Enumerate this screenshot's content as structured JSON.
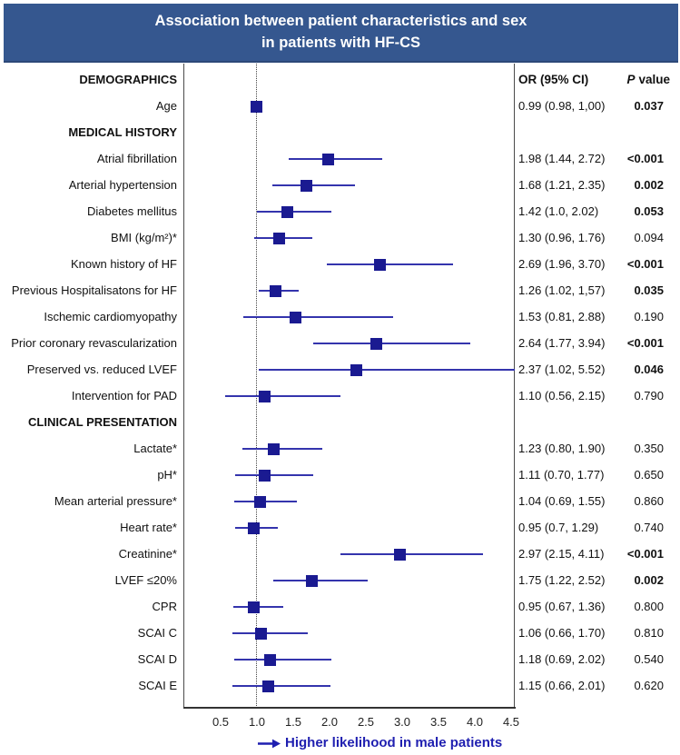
{
  "title": {
    "line1": "Association between patient characteristics and sex",
    "line2": "in patients with HF-CS"
  },
  "columns": {
    "or_header": "OR (95% CI)",
    "p_header_italic": "P",
    "p_header_rest": "value"
  },
  "footer": {
    "arrow_icon": "right-arrow-icon",
    "label": "Higher likelihood in male patients"
  },
  "colors": {
    "title_bar_bg": "#35578f",
    "title_bar_edge": "#2c4878",
    "title_text": "#ffffff",
    "marker": "#1a1a91",
    "ci_line": "#3434ad",
    "reference_line": "#444444",
    "frame_line": "#4a4a4a",
    "axis_line": "#333333",
    "text": "#111111",
    "footer_text": "#1f1fb0"
  },
  "chart_data": {
    "type": "forest",
    "title": "Association between patient characteristics and sex in patients with HF-CS",
    "or_header": "OR (95% CI)",
    "p_header": "P value",
    "xlim": [
      0.5,
      4.5
    ],
    "x_ticks": [
      "0.5",
      "1.0",
      "1.5",
      "2.0",
      "2.5",
      "3.0",
      "3.5",
      "4.0",
      "4.5"
    ],
    "reference_line": 1.0,
    "x_axis_note": "Higher likelihood in male patients",
    "rows": [
      {
        "kind": "section",
        "label": "DEMOGRAPHICS"
      },
      {
        "kind": "item",
        "label": "Age",
        "or": 0.99,
        "ci_low": 0.98,
        "ci_high": 1.0,
        "or_text": "0.99 (0.98, 1,00)",
        "p_text": "0.037",
        "p_bold": true
      },
      {
        "kind": "section",
        "label": "MEDICAL HISTORY"
      },
      {
        "kind": "item",
        "label": "Atrial fibrillation",
        "or": 1.98,
        "ci_low": 1.44,
        "ci_high": 2.72,
        "or_text": "1.98 (1.44, 2.72)",
        "p_text": "<0.001",
        "p_bold": true
      },
      {
        "kind": "item",
        "label": "Arterial hypertension",
        "or": 1.68,
        "ci_low": 1.21,
        "ci_high": 2.35,
        "or_text": "1.68 (1.21, 2.35)",
        "p_text": "0.002",
        "p_bold": true
      },
      {
        "kind": "item",
        "label": "Diabetes mellitus",
        "or": 1.42,
        "ci_low": 1.0,
        "ci_high": 2.02,
        "or_text": "1.42 (1.0, 2.02)",
        "p_text": "0.053",
        "p_bold": true
      },
      {
        "kind": "item",
        "label": "BMI (kg/m²)*",
        "or": 1.3,
        "ci_low": 0.96,
        "ci_high": 1.76,
        "or_text": "1.30 (0.96, 1.76)",
        "p_text": "0.094",
        "p_bold": false
      },
      {
        "kind": "item",
        "label": "Known history of HF",
        "or": 2.69,
        "ci_low": 1.96,
        "ci_high": 3.7,
        "or_text": "2.69 (1.96, 3.70)",
        "p_text": "<0.001",
        "p_bold": true
      },
      {
        "kind": "item",
        "label": "Previous Hospitalisatons for HF",
        "or": 1.26,
        "ci_low": 1.02,
        "ci_high": 1.57,
        "or_text": "1.26 (1.02, 1,57)",
        "p_text": "0.035",
        "p_bold": true
      },
      {
        "kind": "item",
        "label": "Ischemic cardiomyopathy",
        "or": 1.53,
        "ci_low": 0.81,
        "ci_high": 2.88,
        "or_text": "1.53 (0.81, 2.88)",
        "p_text": "0.190",
        "p_bold": false
      },
      {
        "kind": "item",
        "label": "Prior coronary revascularization",
        "or": 2.64,
        "ci_low": 1.77,
        "ci_high": 3.94,
        "or_text": "2.64 (1.77, 3.94)",
        "p_text": "<0.001",
        "p_bold": true
      },
      {
        "kind": "item",
        "label": "Preserved vs. reduced LVEF",
        "or": 2.37,
        "ci_low": 1.02,
        "ci_high": 5.52,
        "or_text": "2.37 (1.02, 5.52)",
        "p_text": "0.046",
        "p_bold": true
      },
      {
        "kind": "item",
        "label": "Intervention for PAD",
        "or": 1.1,
        "ci_low": 0.56,
        "ci_high": 2.15,
        "or_text": "1.10 (0.56, 2.15)",
        "p_text": "0.790",
        "p_bold": false
      },
      {
        "kind": "section",
        "label": "CLINICAL PRESENTATION"
      },
      {
        "kind": "item",
        "label": "Lactate*",
        "or": 1.23,
        "ci_low": 0.8,
        "ci_high": 1.9,
        "or_text": "1.23 (0.80, 1.90)",
        "p_text": "0.350",
        "p_bold": false
      },
      {
        "kind": "item",
        "label": "pH*",
        "or": 1.11,
        "ci_low": 0.7,
        "ci_high": 1.77,
        "or_text": "1.11 (0.70, 1.77)",
        "p_text": "0.650",
        "p_bold": false
      },
      {
        "kind": "item",
        "label": "Mean arterial pressure*",
        "or": 1.04,
        "ci_low": 0.69,
        "ci_high": 1.55,
        "or_text": "1.04 (0.69, 1.55)",
        "p_text": "0.860",
        "p_bold": false
      },
      {
        "kind": "item",
        "label": "Heart rate*",
        "or": 0.95,
        "ci_low": 0.7,
        "ci_high": 1.29,
        "or_text": "0.95 (0.7, 1.29)",
        "p_text": "0.740",
        "p_bold": false
      },
      {
        "kind": "item",
        "label": "Creatinine*",
        "or": 2.97,
        "ci_low": 2.15,
        "ci_high": 4.11,
        "or_text": "2.97 (2.15, 4.11)",
        "p_text": "<0.001",
        "p_bold": true
      },
      {
        "kind": "item",
        "label": "LVEF ≤20%",
        "or": 1.75,
        "ci_low": 1.22,
        "ci_high": 2.52,
        "or_text": "1.75 (1.22, 2.52)",
        "p_text": "0.002",
        "p_bold": true
      },
      {
        "kind": "item",
        "label": "CPR",
        "or": 0.95,
        "ci_low": 0.67,
        "ci_high": 1.36,
        "or_text": "0.95 (0.67, 1.36)",
        "p_text": "0.800",
        "p_bold": false
      },
      {
        "kind": "item",
        "label": "SCAI C",
        "or": 1.06,
        "ci_low": 0.66,
        "ci_high": 1.7,
        "or_text": "1.06 (0.66, 1.70)",
        "p_text": "0.810",
        "p_bold": false
      },
      {
        "kind": "item",
        "label": "SCAI D",
        "or": 1.18,
        "ci_low": 0.69,
        "ci_high": 2.02,
        "or_text": "1.18 (0.69, 2.02)",
        "p_text": "0.540",
        "p_bold": false
      },
      {
        "kind": "item",
        "label": "SCAI E",
        "or": 1.15,
        "ci_low": 0.66,
        "ci_high": 2.01,
        "or_text": "1.15 (0.66, 2.01)",
        "p_text": "0.620",
        "p_bold": false
      }
    ]
  }
}
